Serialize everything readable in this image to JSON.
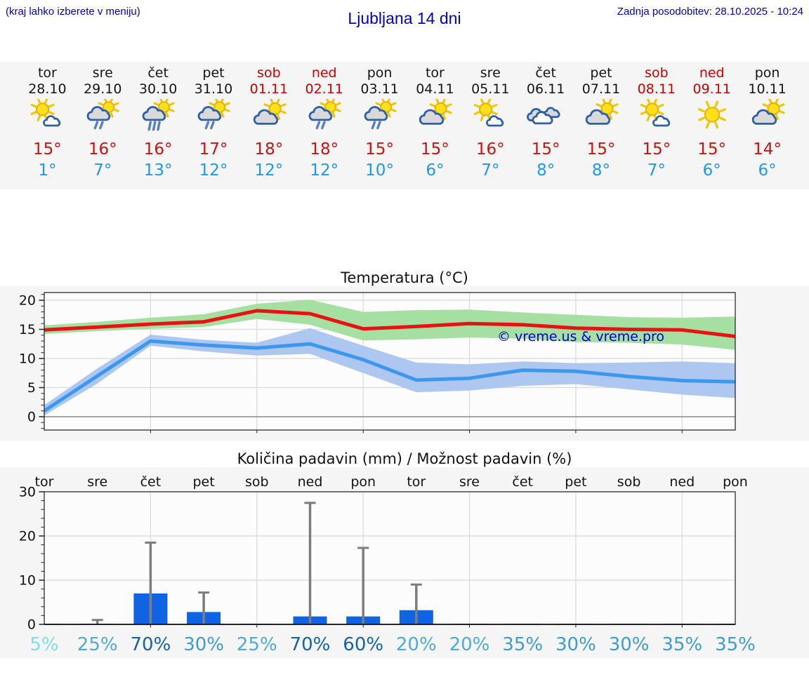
{
  "header": {
    "hint": "(kraj lahko izberete v meniju)",
    "title": "Ljubljana 14 dni",
    "updated": "Zadnja posodobitev: 28.10.2025 - 10:24"
  },
  "watermark": "© vreme.us & vreme.pro",
  "colors": {
    "link_blue": "#0000c8",
    "day_red": "#cc0000",
    "day_black": "#151515",
    "tmax_red": "#cc1111",
    "tmin_blue": "#2097f0",
    "line_max": "#e81212",
    "line_min": "#3b98ec",
    "band_max": "#a6dfa2",
    "band_min": "#aec7f0",
    "bar_blue": "#1063e2",
    "whisker_gray": "#7d7d7d",
    "grid_gray": "#d9d9d9",
    "figure_bg": "#f5f5f6",
    "axes_bg": "#fcfcfd",
    "prob_5": "#7edde9",
    "prob_20_25": "#4fa9da",
    "prob_30_35": "#3e9cd5",
    "prob_60_70": "#1463ab"
  },
  "forecast": {
    "days": [
      {
        "name": "tor",
        "date": "28.10",
        "weekend": false,
        "icon": "sun-cloud",
        "tmax": "15°",
        "tmin": "1°"
      },
      {
        "name": "sre",
        "date": "29.10",
        "weekend": false,
        "icon": "cloud-sun-rain2",
        "tmax": "16°",
        "tmin": "7°"
      },
      {
        "name": "čet",
        "date": "30.10",
        "weekend": false,
        "icon": "cloud-sun-rain3",
        "tmax": "16°",
        "tmin": "13°"
      },
      {
        "name": "pet",
        "date": "31.10",
        "weekend": false,
        "icon": "cloud-sun-rain2",
        "tmax": "17°",
        "tmin": "12°"
      },
      {
        "name": "sob",
        "date": "01.11",
        "weekend": true,
        "icon": "cloud-sun",
        "tmax": "18°",
        "tmin": "12°"
      },
      {
        "name": "ned",
        "date": "02.11",
        "weekend": true,
        "icon": "cloud-sun-rain2",
        "tmax": "18°",
        "tmin": "12°"
      },
      {
        "name": "pon",
        "date": "03.11",
        "weekend": false,
        "icon": "cloud-sun-rain2",
        "tmax": "15°",
        "tmin": "10°"
      },
      {
        "name": "tor",
        "date": "04.11",
        "weekend": false,
        "icon": "cloud-sun",
        "tmax": "15°",
        "tmin": "6°"
      },
      {
        "name": "sre",
        "date": "05.11",
        "weekend": false,
        "icon": "sun-cloud",
        "tmax": "16°",
        "tmin": "7°"
      },
      {
        "name": "čet",
        "date": "06.11",
        "weekend": false,
        "icon": "cloudy",
        "tmax": "15°",
        "tmin": "8°"
      },
      {
        "name": "pet",
        "date": "07.11",
        "weekend": false,
        "icon": "cloud-sun",
        "tmax": "15°",
        "tmin": "8°"
      },
      {
        "name": "sob",
        "date": "08.11",
        "weekend": true,
        "icon": "sun-cloud",
        "tmax": "15°",
        "tmin": "7°"
      },
      {
        "name": "ned",
        "date": "09.11",
        "weekend": true,
        "icon": "sun",
        "tmax": "15°",
        "tmin": "6°"
      },
      {
        "name": "pon",
        "date": "10.11",
        "weekend": false,
        "icon": "cloud-sun",
        "tmax": "14°",
        "tmin": "6°"
      }
    ]
  },
  "chart_data": [
    {
      "type": "line",
      "title": "Temperatura (°C)",
      "categories": [
        "tor",
        "sre",
        "čet",
        "pet",
        "sob",
        "ned",
        "pon",
        "tor",
        "sre",
        "čet",
        "pet",
        "sob",
        "ned",
        "pon"
      ],
      "yticks": [
        0,
        5,
        10,
        15,
        20
      ],
      "ylim": [
        -2.3,
        21.3
      ],
      "grid": true,
      "legend_position": "none",
      "watermark": "© vreme.us & vreme.pro",
      "series": [
        {
          "name": "max temperature",
          "values": [
            14.9,
            15.4,
            15.9,
            16.3,
            18.2,
            17.7,
            15.1,
            15.5,
            16.0,
            15.8,
            15.2,
            15.0,
            14.9,
            13.8
          ]
        },
        {
          "name": "max band upper",
          "values": [
            15.7,
            16.3,
            17.0,
            17.6,
            19.4,
            20.1,
            18.0,
            18.3,
            18.4,
            17.9,
            17.5,
            17.1,
            17.0,
            17.2
          ]
        },
        {
          "name": "max band lower",
          "values": [
            14.2,
            14.7,
            15.1,
            15.4,
            16.8,
            15.8,
            13.1,
            13.3,
            13.6,
            13.4,
            12.8,
            12.7,
            12.4,
            11.5
          ]
        },
        {
          "name": "min temperature",
          "values": [
            1.0,
            7.0,
            13.0,
            12.3,
            11.8,
            12.5,
            9.8,
            6.3,
            6.6,
            8.0,
            7.8,
            6.9,
            6.2,
            6.0
          ]
        },
        {
          "name": "min band upper",
          "values": [
            2.0,
            8.3,
            14.1,
            13.2,
            12.7,
            15.2,
            12.2,
            9.3,
            9.0,
            9.5,
            9.2,
            9.3,
            9.5,
            9.2
          ]
        },
        {
          "name": "min band lower",
          "values": [
            0.2,
            5.7,
            12.2,
            11.2,
            10.5,
            10.8,
            7.5,
            4.2,
            4.5,
            5.3,
            5.6,
            4.7,
            3.8,
            3.2
          ]
        }
      ]
    },
    {
      "type": "bar",
      "title": "Količina padavin (mm) / Možnost padavin (%)",
      "categories": [
        "tor",
        "sre",
        "čet",
        "pet",
        "sob",
        "ned",
        "pon",
        "tor",
        "sre",
        "čet",
        "pet",
        "sob",
        "ned",
        "pon"
      ],
      "values": [
        0.05,
        0.15,
        7.0,
        2.8,
        0.1,
        1.8,
        1.8,
        3.2,
        0.05,
        0.05,
        0.1,
        0.05,
        0.1,
        0.1
      ],
      "whisker_max": [
        null,
        1.0,
        18.5,
        7.2,
        null,
        27.5,
        17.3,
        9.0,
        null,
        null,
        null,
        null,
        null,
        null
      ],
      "probabilities_pct": [
        5,
        25,
        70,
        30,
        25,
        70,
        60,
        20,
        20,
        35,
        30,
        30,
        35,
        35
      ],
      "yticks": [
        0,
        10,
        20,
        30
      ],
      "ylim": [
        0,
        30
      ],
      "grid": true
    }
  ]
}
